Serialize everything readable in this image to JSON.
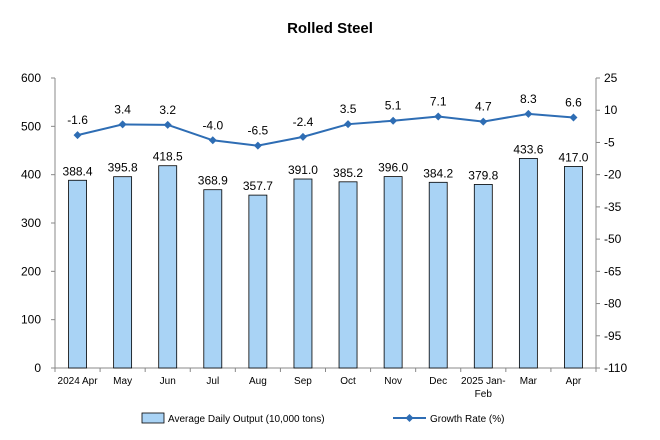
{
  "chart_data": {
    "type": "bar+line",
    "title": "Rolled Steel",
    "categories": [
      "2024 Apr",
      "May",
      "Jun",
      "Jul",
      "Aug",
      "Sep",
      "Oct",
      "Nov",
      "Dec",
      "2025 Jan-Feb",
      "Mar",
      "Apr"
    ],
    "category_lines": [
      [
        "2024 Apr"
      ],
      [
        "May"
      ],
      [
        "Jun"
      ],
      [
        "Jul"
      ],
      [
        "Aug"
      ],
      [
        "Sep"
      ],
      [
        "Oct"
      ],
      [
        "Nov"
      ],
      [
        "Dec"
      ],
      [
        "2025 Jan-",
        "Feb"
      ],
      [
        "Mar"
      ],
      [
        "Apr"
      ]
    ],
    "series": [
      {
        "name": "Average Daily Output (10,000 tons)",
        "type": "bar",
        "axis": "left",
        "color": "#a9d3f5",
        "values": [
          388.4,
          395.8,
          418.5,
          368.9,
          357.7,
          391.0,
          385.2,
          396.0,
          384.2,
          379.8,
          433.6,
          417.0
        ],
        "labels": [
          "388.4",
          "395.8",
          "418.5",
          "368.9",
          "357.7",
          "391.0",
          "385.2",
          "396.0",
          "384.2",
          "379.8",
          "433.6",
          "417.0"
        ]
      },
      {
        "name": "Growth Rate (%)",
        "type": "line",
        "axis": "right",
        "color": "#2e6db4",
        "values": [
          -1.6,
          3.4,
          3.2,
          -4.0,
          -6.5,
          -2.4,
          3.5,
          5.1,
          7.1,
          4.7,
          8.3,
          6.6
        ],
        "labels": [
          "-1.6",
          "3.4",
          "3.2",
          "-4.0",
          "-6.5",
          "-2.4",
          "3.5",
          "5.1",
          "7.1",
          "4.7",
          "8.3",
          "6.6"
        ]
      }
    ],
    "y_left": {
      "min": 0,
      "max": 600,
      "ticks": [
        0,
        100,
        200,
        300,
        400,
        500,
        600
      ]
    },
    "y_right": {
      "min": -110,
      "max": 25,
      "ticks": [
        -110,
        -95,
        -80,
        -65,
        -50,
        -35,
        -20,
        -5,
        10,
        25
      ]
    },
    "legend_position": "bottom",
    "grid": false
  }
}
